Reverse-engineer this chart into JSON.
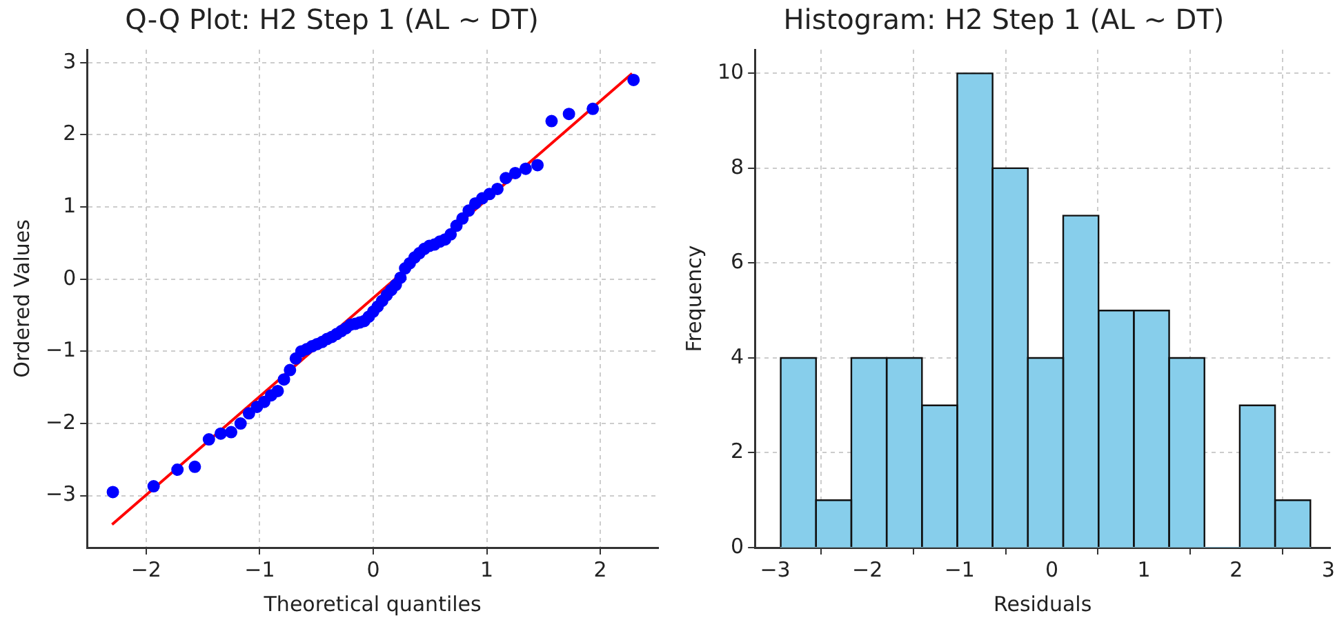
{
  "chart_data": [
    {
      "type": "scatter",
      "title": "Q-Q Plot: H2 Step 1 (AL ~ DT)",
      "xlabel": "Theoretical quantiles",
      "ylabel": "Ordered Values",
      "xlim": [
        -2.52,
        2.51
      ],
      "ylim": [
        -3.72,
        3.18
      ],
      "xticks": [
        -2,
        -1,
        0,
        1,
        2
      ],
      "yticks": [
        -3,
        -2,
        -1,
        0,
        1,
        2,
        3
      ],
      "grid": true,
      "series": [
        {
          "type": "scatter",
          "color": "#0000ff",
          "marker": "circle",
          "x": [
            -2.293,
            -1.934,
            -1.724,
            -1.571,
            -1.447,
            -1.343,
            -1.251,
            -1.168,
            -1.094,
            -1.024,
            -0.96,
            -0.899,
            -0.841,
            -0.786,
            -0.733,
            -0.682,
            -0.633,
            -0.586,
            -0.539,
            -0.494,
            -0.45,
            -0.407,
            -0.364,
            -0.322,
            -0.281,
            -0.24,
            -0.199,
            -0.159,
            -0.119,
            -0.079,
            -0.039,
            0,
            0.039,
            0.079,
            0.119,
            0.159,
            0.199,
            0.24,
            0.281,
            0.322,
            0.364,
            0.407,
            0.45,
            0.494,
            0.539,
            0.586,
            0.633,
            0.682,
            0.733,
            0.786,
            0.841,
            0.899,
            0.96,
            1.024,
            1.094,
            1.168,
            1.251,
            1.343,
            1.447,
            1.571,
            1.724,
            1.934,
            2.293
          ],
          "values": [
            -2.95,
            -2.87,
            -2.64,
            -2.6,
            -2.22,
            -2.14,
            -2.12,
            -2.0,
            -1.86,
            -1.77,
            -1.7,
            -1.61,
            -1.55,
            -1.39,
            -1.26,
            -1.1,
            -1.0,
            -0.97,
            -0.93,
            -0.9,
            -0.87,
            -0.83,
            -0.8,
            -0.76,
            -0.72,
            -0.68,
            -0.63,
            -0.62,
            -0.6,
            -0.58,
            -0.52,
            -0.45,
            -0.38,
            -0.3,
            -0.22,
            -0.15,
            -0.08,
            0.02,
            0.15,
            0.22,
            0.3,
            0.36,
            0.42,
            0.46,
            0.48,
            0.52,
            0.55,
            0.62,
            0.74,
            0.84,
            0.95,
            1.05,
            1.12,
            1.18,
            1.25,
            1.4,
            1.47,
            1.53,
            1.58,
            2.19,
            2.29,
            2.36,
            2.76
          ]
        },
        {
          "type": "line",
          "color": "#ff0000",
          "x": [
            -2.3,
            2.28
          ],
          "values": [
            -3.4,
            2.85
          ]
        }
      ]
    },
    {
      "type": "histogram",
      "title": "Histogram: H2 Step 1 (AL ~ DT)",
      "xlabel": "Residuals",
      "ylabel": "Frequency",
      "xlim": [
        -3.22,
        3.02
      ],
      "ylim": [
        0,
        10.5
      ],
      "xticks": [
        -3,
        -2,
        -1,
        0,
        1,
        2,
        3
      ],
      "yticks": [
        0,
        2,
        4,
        6,
        8,
        10
      ],
      "grid": true,
      "color": "#87ceeb",
      "bins": [
        -2.94,
        -2.557,
        -2.174,
        -1.791,
        -1.408,
        -1.025,
        -0.642,
        -0.259,
        0.124,
        0.507,
        0.89,
        1.273,
        1.656,
        2.039,
        2.422,
        2.805
      ],
      "values": [
        4,
        1,
        4,
        4,
        3,
        10,
        8,
        4,
        7,
        5,
        5,
        4,
        0,
        3,
        1
      ]
    }
  ]
}
